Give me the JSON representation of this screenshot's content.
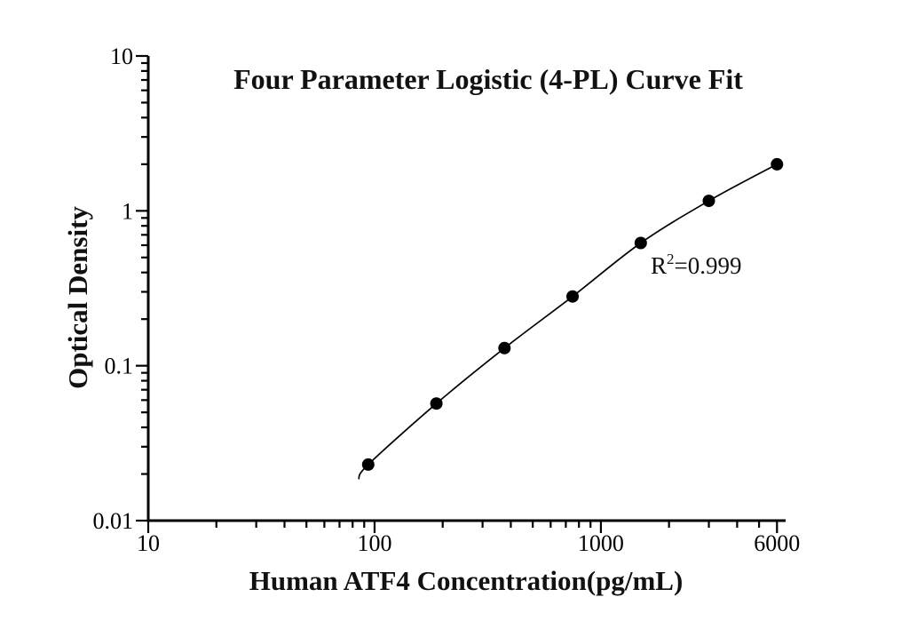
{
  "chart_data": {
    "type": "scatter",
    "title": "Four Parameter Logistic (4-PL) Curve Fit",
    "xlabel": "Human ATF4 Concentration(pg/mL)",
    "ylabel": "Optical Density",
    "x_scale": "log",
    "y_scale": "log",
    "xlim": [
      10,
      6550
    ],
    "ylim": [
      0.01,
      10
    ],
    "grid": false,
    "legend": "none",
    "points": [
      {
        "x": 93.75,
        "y": 0.023
      },
      {
        "x": 187.5,
        "y": 0.057
      },
      {
        "x": 375,
        "y": 0.13
      },
      {
        "x": 750,
        "y": 0.28
      },
      {
        "x": 1500,
        "y": 0.62
      },
      {
        "x": 3000,
        "y": 1.16
      },
      {
        "x": 6000,
        "y": 2.0
      }
    ],
    "curve_pre_point": {
      "x": 85,
      "y": 0.0185
    },
    "x_ticks": [
      {
        "value": 10,
        "label": "10"
      },
      {
        "value": 100,
        "label": "100"
      },
      {
        "value": 1000,
        "label": "1000"
      },
      {
        "value": 6000,
        "label": "6000"
      }
    ],
    "y_ticks": [
      {
        "value": 0.01,
        "label": "0.01"
      },
      {
        "value": 0.1,
        "label": "0.1"
      },
      {
        "value": 1,
        "label": "1"
      },
      {
        "value": 10,
        "label": "10"
      }
    ],
    "annotation": {
      "base": "R",
      "sup": "2",
      "rest": "=0.999",
      "text": "R²=0.999"
    },
    "r_squared": 0.999,
    "marker": {
      "shape": "circle",
      "color": "#000000",
      "radius": 7
    },
    "line_color": "#000000",
    "axis_color": "#000000"
  }
}
